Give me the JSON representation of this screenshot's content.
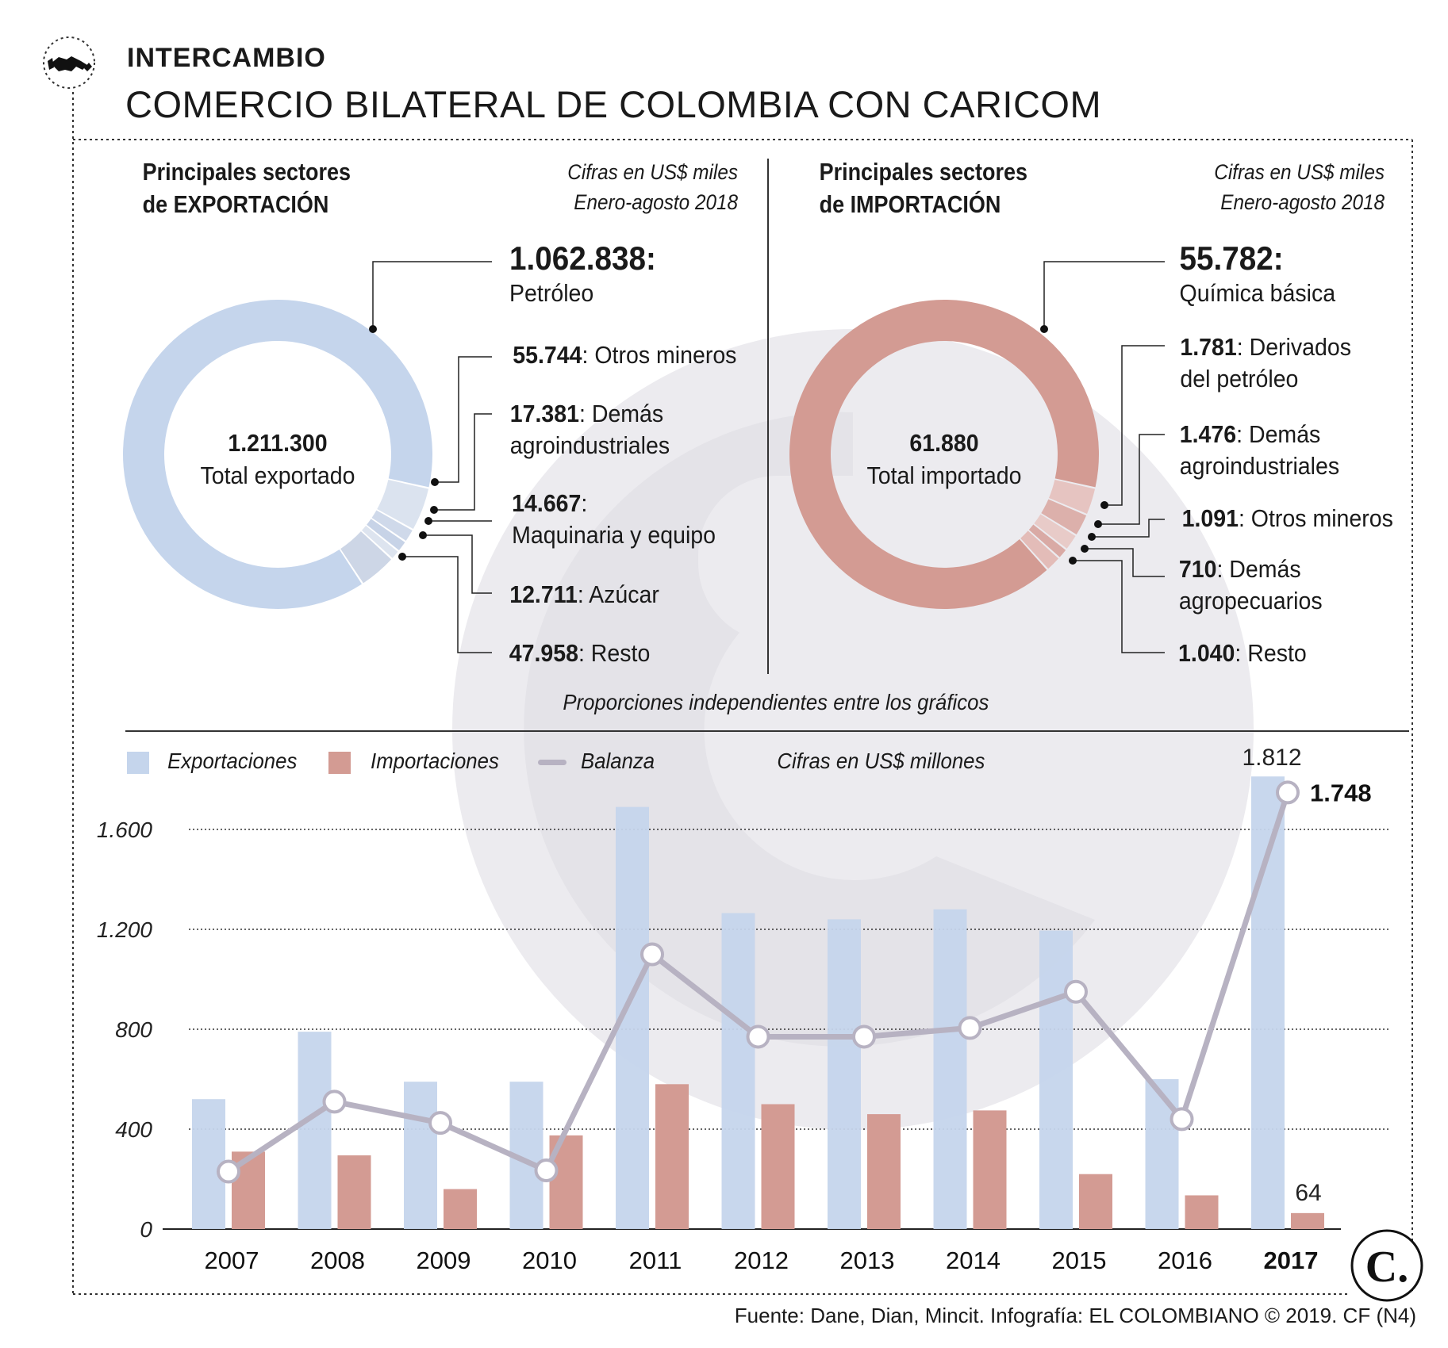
{
  "header": {
    "section": "INTERCAMBIO",
    "title": "COMERCIO BILATERAL DE COLOMBIA CON CARICOM"
  },
  "exports": {
    "title_line1": "Principales sectores",
    "title_line2": "de EXPORTACIÓN",
    "note_line1": "Cifras en US$ miles",
    "note_line2": "Enero-agosto 2018",
    "total_value": "1.211.300",
    "total_label": "Total exportado",
    "main_value": "1.062.838",
    "main_sep": ":",
    "main_label": "Petróleo",
    "items": [
      {
        "value": "55.744",
        "label": ": Otros mineros"
      },
      {
        "value": "17.381",
        "label": ": Demás",
        "label2": "agroindustriales"
      },
      {
        "value": "14.667",
        "label": ":",
        "label2": "Maquinaria y equipo"
      },
      {
        "value": "12.711",
        "label": ": Azúcar"
      },
      {
        "value": "47.958",
        "label": ": Resto"
      }
    ],
    "color": "#c5d5ec"
  },
  "imports": {
    "title_line1": "Principales sectores",
    "title_line2": "de IMPORTACIÓN",
    "note_line1": "Cifras en US$ miles",
    "note_line2": "Enero-agosto 2018",
    "total_value": "61.880",
    "total_label": "Total importado",
    "main_value": "55.782",
    "main_sep": ":",
    "main_label": "Química básica",
    "items": [
      {
        "value": "1.781",
        "label": ": Derivados",
        "label2": "del petróleo"
      },
      {
        "value": "1.476",
        "label": ": Demás",
        "label2": "agroindustriales"
      },
      {
        "value": "1.091",
        "label": ": Otros mineros"
      },
      {
        "value": "710",
        "label": ": Demás",
        "label2": "agropecuarios"
      },
      {
        "value": "1.040",
        "label": ": Resto"
      }
    ],
    "color": "#d39b93"
  },
  "proportions_note": "Proporciones independientes entre los gráficos",
  "legend": {
    "exports": "Exportaciones",
    "imports": "Importaciones",
    "balance": "Balanza",
    "units": "Cifras en US$ millones"
  },
  "chart_data": [
    {
      "type": "pie",
      "title": "Principales sectores de EXPORTACIÓN",
      "subtitle": "Cifras en US$ miles, Enero-agosto 2018",
      "categories": [
        "Petróleo",
        "Otros mineros",
        "Demás agroindustriales",
        "Maquinaria y equipo",
        "Azúcar",
        "Resto"
      ],
      "values": [
        1062838,
        55744,
        17381,
        14667,
        12711,
        47958
      ],
      "total": 1211300
    },
    {
      "type": "pie",
      "title": "Principales sectores de IMPORTACIÓN",
      "subtitle": "Cifras en US$ miles, Enero-agosto 2018",
      "categories": [
        "Química básica",
        "Derivados del petróleo",
        "Demás agroindustriales",
        "Otros mineros",
        "Demás agropecuarios",
        "Resto"
      ],
      "values": [
        55782,
        1781,
        1476,
        1091,
        710,
        1040
      ],
      "total": 61880
    },
    {
      "type": "bar",
      "title": "Comercio bilateral Colombia - Caricom",
      "ylabel": "Cifras en US$ millones",
      "categories": [
        "2007",
        "2008",
        "2009",
        "2010",
        "2011",
        "2012",
        "2013",
        "2014",
        "2015",
        "2016",
        "2017"
      ],
      "series": [
        {
          "name": "Exportaciones",
          "values": [
            520,
            790,
            590,
            590,
            1690,
            1265,
            1240,
            1280,
            1195,
            600,
            1812
          ]
        },
        {
          "name": "Importaciones",
          "values": [
            310,
            295,
            160,
            375,
            580,
            500,
            460,
            475,
            220,
            135,
            64
          ]
        },
        {
          "name": "Balanza",
          "type": "line",
          "values": [
            230,
            510,
            425,
            235,
            1100,
            770,
            770,
            805,
            950,
            440,
            1748
          ]
        }
      ],
      "ylim": [
        0,
        1800
      ],
      "yticks": [
        0,
        400,
        800,
        1200,
        1600
      ],
      "ytick_labels": [
        "0",
        "400",
        "800",
        "1.200",
        "1.600"
      ],
      "annotations": {
        "last_export": "1.812",
        "last_import": "64",
        "last_balance": "1.748"
      },
      "grid": true,
      "legend": "top-left"
    }
  ],
  "source": "Fuente: Dane, Dian, Mincit. Infografía: EL COLOMBIANO © 2019. CF (N4)",
  "logo_text": "C."
}
